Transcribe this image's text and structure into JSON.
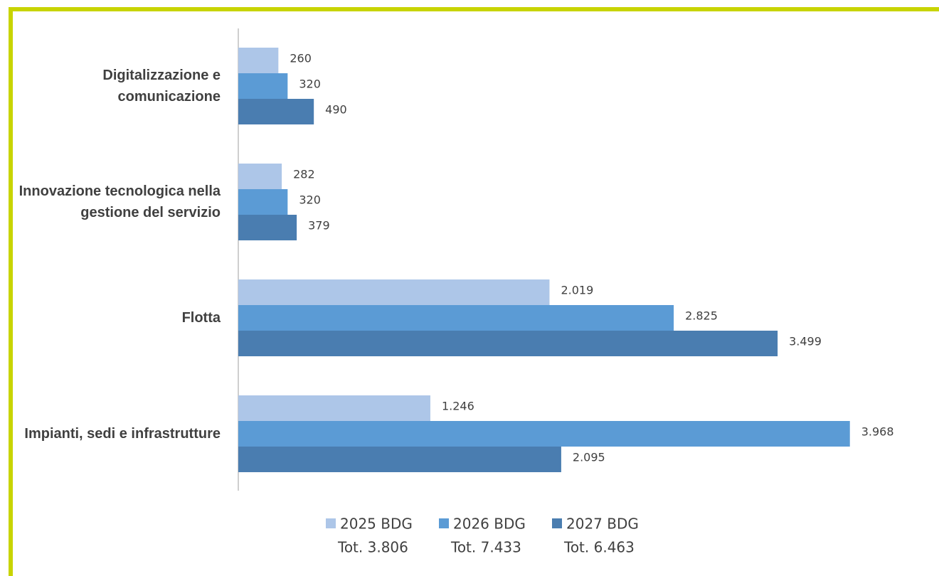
{
  "chart_data": {
    "type": "hbar",
    "categories": [
      "Digitalizzazione e comunicazione",
      "Innovazione tecnologica nella gestione del servizio",
      "Flotta",
      "Impianti, sedi e infrastrutture"
    ],
    "xlim": [
      0,
      4200
    ],
    "series": [
      {
        "name": "2025 BDG",
        "total_label": "Tot. 3.806",
        "color": "#adc6e8",
        "values": [
          260,
          282,
          2019,
          1246
        ],
        "value_labels": [
          "260",
          "282",
          "2.019",
          "1.246"
        ]
      },
      {
        "name": "2026 BDG",
        "total_label": "Tot. 7.433",
        "color": "#5b9bd5",
        "values": [
          320,
          320,
          2825,
          3968
        ],
        "value_labels": [
          "320",
          "320",
          "2.825",
          "3.968"
        ]
      },
      {
        "name": "2027 BDG",
        "total_label": "Tot. 6.463",
        "color": "#4a7db0",
        "values": [
          490,
          379,
          3499,
          2095
        ],
        "value_labels": [
          "490",
          "379",
          "3.499",
          "2.095"
        ]
      }
    ]
  }
}
